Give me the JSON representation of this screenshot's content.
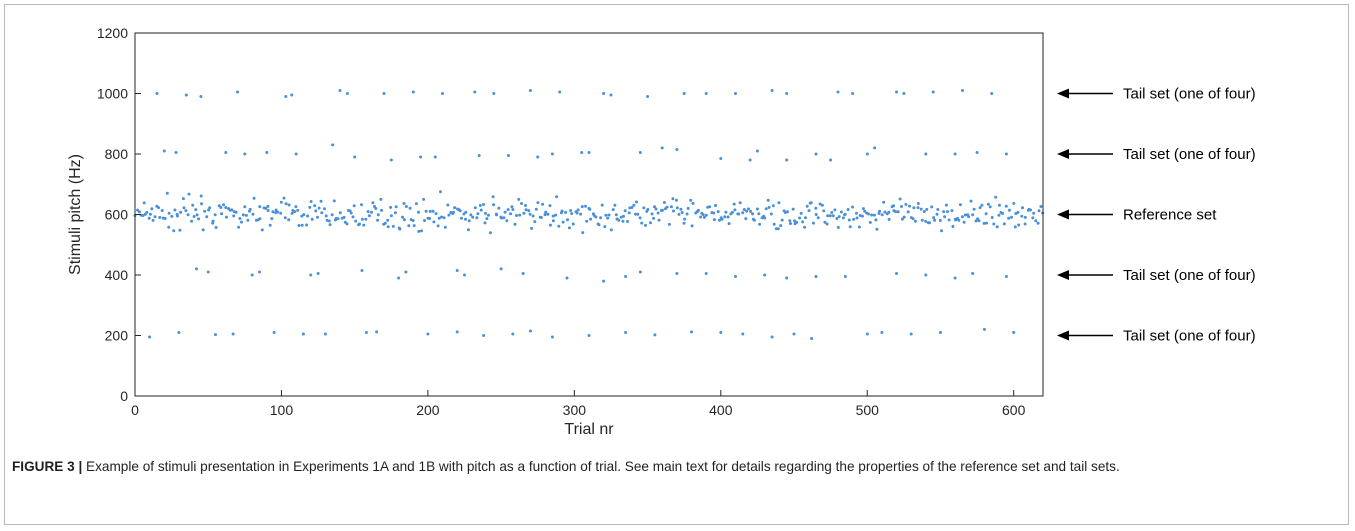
{
  "chart_data": {
    "type": "scatter",
    "title": "",
    "xlabel": "Trial nr",
    "ylabel": "Stimuli pitch (Hz)",
    "xlim": [
      0,
      620
    ],
    "ylim": [
      0,
      1200
    ],
    "xticks": [
      0,
      100,
      200,
      300,
      400,
      500,
      600
    ],
    "yticks": [
      0,
      200,
      400,
      600,
      800,
      1000,
      1200
    ],
    "point_color": "#4a90d9",
    "grid": false,
    "legend": "none",
    "series": [
      {
        "points": [
          [
            10,
            195
          ],
          [
            30,
            210
          ],
          [
            55,
            203
          ],
          [
            67,
            205
          ],
          [
            95,
            210
          ],
          [
            115,
            205
          ],
          [
            130,
            205
          ],
          [
            158,
            210
          ],
          [
            165,
            212
          ],
          [
            200,
            205
          ],
          [
            220,
            212
          ],
          [
            238,
            200
          ],
          [
            258,
            205
          ],
          [
            270,
            215
          ],
          [
            285,
            195
          ],
          [
            310,
            200
          ],
          [
            335,
            210
          ],
          [
            355,
            202
          ],
          [
            380,
            212
          ],
          [
            400,
            210
          ],
          [
            415,
            205
          ],
          [
            435,
            195
          ],
          [
            450,
            205
          ],
          [
            462,
            190
          ],
          [
            500,
            205
          ],
          [
            510,
            210
          ],
          [
            530,
            205
          ],
          [
            550,
            210
          ],
          [
            580,
            220
          ],
          [
            600,
            210
          ],
          [
            42,
            420
          ],
          [
            50,
            410
          ],
          [
            80,
            400
          ],
          [
            85,
            410
          ],
          [
            120,
            400
          ],
          [
            125,
            405
          ],
          [
            155,
            415
          ],
          [
            180,
            390
          ],
          [
            185,
            410
          ],
          [
            220,
            415
          ],
          [
            225,
            400
          ],
          [
            250,
            420
          ],
          [
            265,
            405
          ],
          [
            295,
            390
          ],
          [
            320,
            380
          ],
          [
            335,
            395
          ],
          [
            345,
            410
          ],
          [
            370,
            405
          ],
          [
            390,
            405
          ],
          [
            410,
            395
          ],
          [
            430,
            400
          ],
          [
            445,
            390
          ],
          [
            465,
            395
          ],
          [
            485,
            395
          ],
          [
            520,
            405
          ],
          [
            540,
            400
          ],
          [
            560,
            390
          ],
          [
            572,
            405
          ],
          [
            595,
            395
          ],
          [
            20,
            810
          ],
          [
            28,
            805
          ],
          [
            62,
            805
          ],
          [
            75,
            800
          ],
          [
            90,
            805
          ],
          [
            110,
            800
          ],
          [
            135,
            830
          ],
          [
            150,
            790
          ],
          [
            175,
            780
          ],
          [
            195,
            790
          ],
          [
            205,
            790
          ],
          [
            235,
            795
          ],
          [
            255,
            795
          ],
          [
            275,
            790
          ],
          [
            285,
            800
          ],
          [
            305,
            805
          ],
          [
            310,
            805
          ],
          [
            345,
            805
          ],
          [
            360,
            820
          ],
          [
            370,
            815
          ],
          [
            400,
            785
          ],
          [
            420,
            780
          ],
          [
            425,
            810
          ],
          [
            445,
            780
          ],
          [
            465,
            800
          ],
          [
            475,
            780
          ],
          [
            500,
            800
          ],
          [
            505,
            820
          ],
          [
            540,
            800
          ],
          [
            560,
            800
          ],
          [
            575,
            805
          ],
          [
            595,
            800
          ],
          [
            15,
            1000
          ],
          [
            35,
            995
          ],
          [
            45,
            990
          ],
          [
            70,
            1005
          ],
          [
            103,
            990
          ],
          [
            107,
            995
          ],
          [
            140,
            1010
          ],
          [
            145,
            1000
          ],
          [
            170,
            1000
          ],
          [
            190,
            1005
          ],
          [
            210,
            1000
          ],
          [
            232,
            1005
          ],
          [
            245,
            1000
          ],
          [
            270,
            1010
          ],
          [
            290,
            1005
          ],
          [
            320,
            1000
          ],
          [
            325,
            995
          ],
          [
            350,
            990
          ],
          [
            375,
            1000
          ],
          [
            390,
            1000
          ],
          [
            410,
            1000
          ],
          [
            435,
            1010
          ],
          [
            445,
            1000
          ],
          [
            480,
            1005
          ],
          [
            490,
            1000
          ],
          [
            520,
            1005
          ],
          [
            525,
            1000
          ],
          [
            545,
            1005
          ],
          [
            565,
            1010
          ],
          [
            585,
            1000
          ]
        ],
        "reference": {
          "count": 560,
          "x_range": [
            0,
            620
          ],
          "centre": 600,
          "spread": 65
        }
      }
    ],
    "annotations": [
      {
        "label": "Tail set (one of four)",
        "y": 1000
      },
      {
        "label": "Tail set (one of four)",
        "y": 800
      },
      {
        "label": "Reference set",
        "y": 600
      },
      {
        "label": "Tail set (one of four)",
        "y": 400
      },
      {
        "label": "Tail set (one of four)",
        "y": 200
      }
    ]
  },
  "caption": {
    "lead": "FIGURE 3 |",
    "text": " Example of stimuli presentation in Experiments 1A and 1B with pitch as a function of trial. See main text for details regarding the properties of the reference set and tail sets."
  }
}
